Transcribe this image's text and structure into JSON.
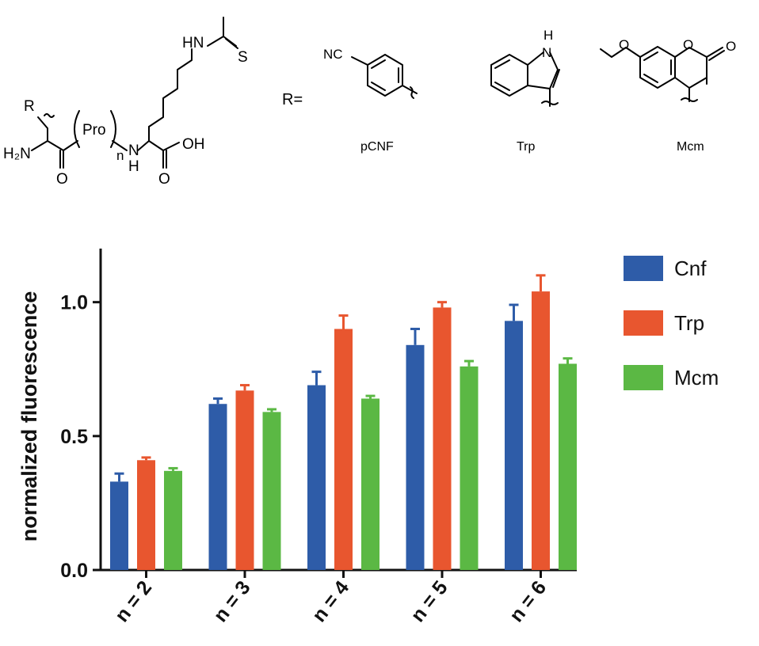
{
  "structure": {
    "prefix": "R=",
    "molecule": {
      "r_label": "R",
      "nh2": "H₂N",
      "carbonyl_o": "O",
      "pro": "Pro",
      "n": "n",
      "amide_n": "N",
      "amide_h": "H",
      "acid": "OH",
      "acid_o": "O",
      "thioamide_hn": "HN",
      "thioamide_s": "S"
    },
    "pcnf": {
      "nc": "NC",
      "name": "pCNF"
    },
    "trp": {
      "nh_n": "N",
      "nh_h": "H",
      "name": "Trp"
    },
    "mcm": {
      "methoxy_o": "O",
      "ring_o": "O",
      "carbonyl_o": "O",
      "name": "Mcm"
    }
  },
  "chart_data": {
    "type": "bar",
    "title": "",
    "xlabel": "",
    "ylabel": "normalized fluorescence",
    "categories": [
      "n = 2",
      "n = 3",
      "n = 4",
      "n = 5",
      "n = 6"
    ],
    "ylim": [
      0,
      1.2
    ],
    "yticks": [
      "0.0",
      "0.5",
      "1.0"
    ],
    "legend_position": "right",
    "grid": false,
    "series": [
      {
        "name": "Cnf",
        "color": "#2e5ca8",
        "values": [
          0.33,
          0.62,
          0.69,
          0.84,
          0.93
        ],
        "errors": [
          0.03,
          0.02,
          0.05,
          0.06,
          0.06
        ]
      },
      {
        "name": "Trp",
        "color": "#e8562f",
        "values": [
          0.41,
          0.67,
          0.9,
          0.98,
          1.04
        ],
        "errors": [
          0.01,
          0.02,
          0.05,
          0.02,
          0.06
        ]
      },
      {
        "name": "Mcm",
        "color": "#5bb844",
        "values": [
          0.37,
          0.59,
          0.64,
          0.76,
          0.77
        ],
        "errors": [
          0.01,
          0.01,
          0.01,
          0.02,
          0.02
        ]
      }
    ]
  }
}
